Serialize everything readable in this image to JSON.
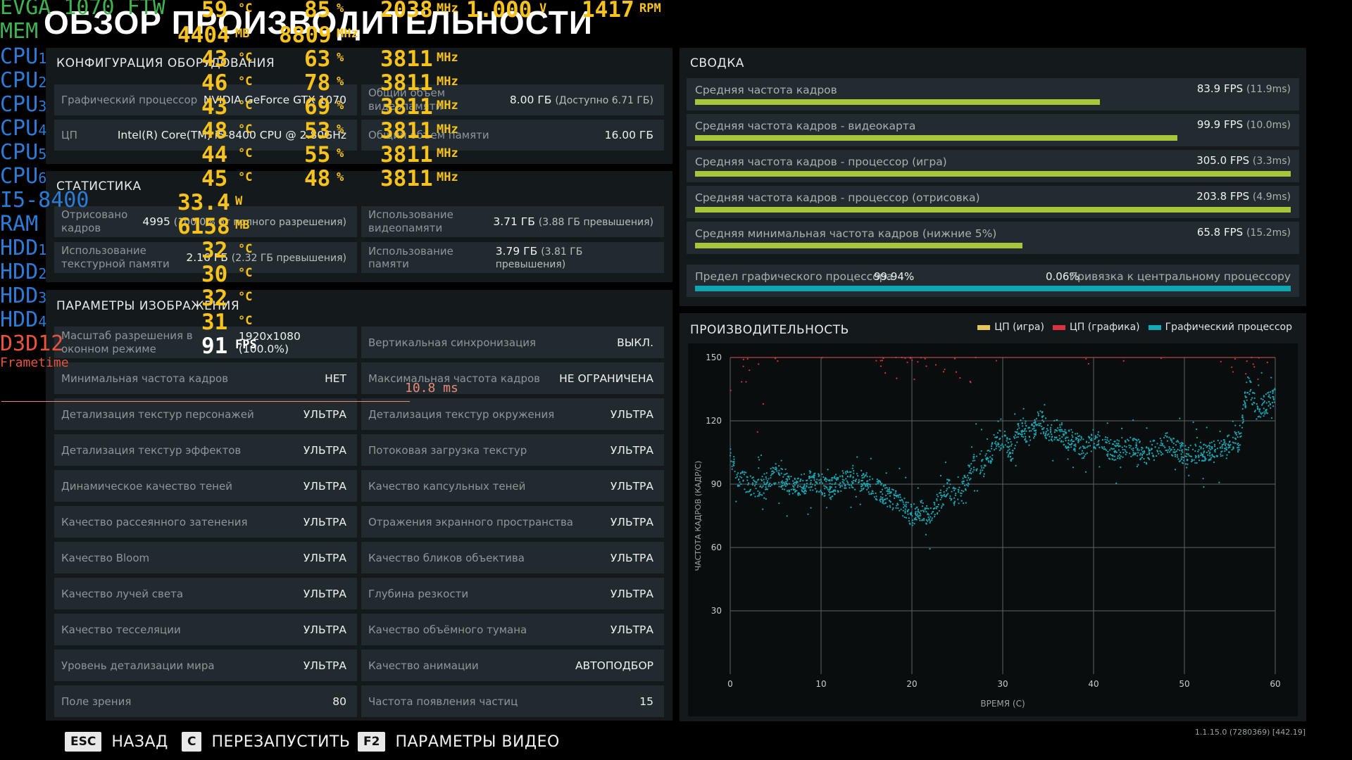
{
  "page_title": "ОБЗОР ПРОИЗВОДИТЕЛЬНОСТИ",
  "hardware": {
    "title": "КОНФИГУРАЦИЯ ОБОРУДОВАНИЯ",
    "gpu_label": "Графический процессор",
    "gpu_value": "NVIDIA GeForce GTX 1070",
    "cpu_label": "ЦП",
    "cpu_value": "Intel(R) Core(TM) i5-8400 CPU @ 2.80GHz",
    "vram_label": "Общий объем видеопамяти",
    "vram_value": "8.00 ГБ",
    "vram_extra": "(Доступно 6.71 ГБ)",
    "ram_label": "Общий объем памяти",
    "ram_value": "16.00 ГБ"
  },
  "stats": {
    "title": "СТАТИСТИКА",
    "frames_label": "Отрисовано кадров",
    "frames_value": "4995",
    "frames_extra": "(100.0% от полного разрешения)",
    "vram_use_label": "Использование видеопамяти",
    "vram_use_value": "3.71 ГБ",
    "vram_use_extra": "(3.88 ГБ превышения)",
    "tex_label": "Использование текстурной памяти",
    "tex_value": "2.16 ГБ",
    "tex_extra": "(2.32 ГБ превышения)",
    "mem_label": "Использование памяти",
    "mem_value": "3.79 ГБ",
    "mem_extra": "(3.81 ГБ превышения)"
  },
  "image": {
    "title": "ПАРАМЕТРЫ ИЗОБРАЖЕНИЯ",
    "left": [
      {
        "label": "Масштаб разрешения в оконном режиме",
        "value": "1920x1080 (100.0%)"
      },
      {
        "label": "Минимальная частота кадров",
        "value": "НЕТ"
      },
      {
        "label": "Детализация текстур персонажей",
        "value": "УЛЬТРА"
      },
      {
        "label": "Детализация текстур эффектов",
        "value": "УЛЬТРА"
      },
      {
        "label": "Динамическое качество теней",
        "value": "УЛЬТРА"
      },
      {
        "label": "Качество рассеянного затенения",
        "value": "УЛЬТРА"
      },
      {
        "label": "Качество Bloom",
        "value": "УЛЬТРА"
      },
      {
        "label": "Качество лучей света",
        "value": "УЛЬТРА"
      },
      {
        "label": "Качество тесселяции",
        "value": "УЛЬТРА"
      },
      {
        "label": "Уровень детализации мира",
        "value": "УЛЬТРА"
      },
      {
        "label": "Поле зрения",
        "value": "80"
      }
    ],
    "right": [
      {
        "label": "Вертикальная синхронизация",
        "value": "ВЫКЛ."
      },
      {
        "label": "Максимальная частота кадров",
        "value": "НЕ ОГРАНИЧЕНА"
      },
      {
        "label": "Детализация текстур окружения",
        "value": "УЛЬТРА"
      },
      {
        "label": "Потоковая загрузка текстур",
        "value": "УЛЬТРА"
      },
      {
        "label": "Качество капсульных теней",
        "value": "УЛЬТРА"
      },
      {
        "label": "Отражения экранного пространства",
        "value": "УЛЬТРА"
      },
      {
        "label": "Качество бликов объектива",
        "value": "УЛЬТРА"
      },
      {
        "label": "Глубина резкости",
        "value": "УЛЬТРА"
      },
      {
        "label": "Качество объёмного тумана",
        "value": "УЛЬТРА"
      },
      {
        "label": "Качество анимации",
        "value": "АВТОПОДБОР"
      },
      {
        "label": "Частота появления частиц",
        "value": "15"
      }
    ]
  },
  "summary": {
    "title": "СВОДКА",
    "rows": [
      {
        "label": "Средняя частота кадров",
        "value": "83.9 FPS",
        "extra": "(11.9ms)",
        "fraction": 0.68
      },
      {
        "label": "Средняя частота кадров - видеокарта",
        "value": "99.9 FPS",
        "extra": "(10.0ms)",
        "fraction": 0.81
      },
      {
        "label": "Средняя частота кадров - процессор (игра)",
        "value": "305.0 FPS",
        "extra": "(3.3ms)",
        "fraction": 1.0
      },
      {
        "label": "Средняя частота кадров - процессор (отрисовка)",
        "value": "203.8 FPS",
        "extra": "(4.9ms)",
        "fraction": 1.0
      },
      {
        "label": "Средняя минимальная частота кадров (нижние 5%)",
        "value": "65.8 FPS",
        "extra": "(15.2ms)",
        "fraction": 0.55
      }
    ],
    "limit": {
      "gpu_label": "Предел графического процессора",
      "gpu_value": "99.94%",
      "cpu_value": "0.06%",
      "cpu_label": "Привязка к центральному процессору",
      "fraction": 1.0
    }
  },
  "performance": {
    "title": "ПРОИЗВОДИТЕЛЬНОСТЬ",
    "legend": [
      {
        "label": "ЦП (игра)",
        "color": "#e8c55a"
      },
      {
        "label": "ЦП (графика)",
        "color": "#d9343e"
      },
      {
        "label": "Графический процессор",
        "color": "#16a9b6"
      }
    ]
  },
  "chart_data": {
    "type": "scatter",
    "xlabel": "ВРЕМЯ (С)",
    "ylabel": "ЧАСТОТА КАДРОВ (КАДР/С)",
    "xlim": [
      0,
      60
    ],
    "ylim": [
      0,
      150
    ],
    "xticks": [
      "0",
      "10",
      "20",
      "30",
      "40",
      "50",
      "60"
    ],
    "yticks": [
      "30",
      "60",
      "90",
      "120",
      "150"
    ],
    "grid": true,
    "legend_position": "top-right",
    "series": [
      {
        "name": "Графический процессор",
        "color": "#16a9b6",
        "trend_x": [
          0,
          1,
          3,
          5,
          7,
          9,
          11,
          13,
          15,
          17,
          19,
          20,
          21,
          22,
          23,
          24,
          25,
          26,
          27,
          28,
          29,
          30,
          31,
          32,
          33,
          34,
          35,
          36,
          37,
          38,
          39,
          40,
          42,
          44,
          46,
          48,
          50,
          52,
          54,
          55,
          56,
          57,
          58,
          59,
          60
        ],
        "trend_y": [
          104,
          92,
          88,
          95,
          88,
          92,
          88,
          93,
          91,
          85,
          80,
          75,
          78,
          74,
          82,
          88,
          82,
          92,
          102,
          98,
          108,
          112,
          105,
          118,
          112,
          122,
          115,
          116,
          112,
          110,
          106,
          112,
          106,
          108,
          104,
          110,
          104,
          105,
          106,
          110,
          110,
          138,
          125,
          128,
          132
        ]
      },
      {
        "name": "ЦП (графика)",
        "color": "#d9343e",
        "trend_x": [
          0,
          2,
          4,
          16,
          20,
          22,
          26,
          56,
          58,
          60
        ],
        "trend_y": [
          150,
          140,
          130,
          148,
          150,
          146,
          112,
          150,
          145,
          150
        ]
      },
      {
        "name": "ЦП (игра)",
        "color": "#e8c55a",
        "trend_x": [
          0,
          60
        ],
        "trend_y": [
          150,
          150
        ]
      }
    ]
  },
  "overlay": {
    "gpu_name": "EVGA 1070 FTW",
    "gpu_temp": "59",
    "gpu_load": "85",
    "gpu_clock": "2038",
    "gpu_volt": "1.000",
    "gpu_fan": "1417",
    "mem_label": "MEM",
    "mem_used": "4404",
    "mem_clock": "8809",
    "unit_c": "°C",
    "unit_pct": "%",
    "unit_mhz": "MHz",
    "unit_mb": "MB",
    "unit_v": "V",
    "unit_rpm": "RPM",
    "unit_w": "W",
    "unit_fps": "FPS",
    "cpus": [
      {
        "label": "CPU",
        "idx": "1",
        "temp": "43",
        "load": "63",
        "clock": "3811"
      },
      {
        "label": "CPU",
        "idx": "2",
        "temp": "46",
        "load": "78",
        "clock": "3811"
      },
      {
        "label": "CPU",
        "idx": "3",
        "temp": "43",
        "load": "69",
        "clock": "3811"
      },
      {
        "label": "CPU",
        "idx": "4",
        "temp": "48",
        "load": "53",
        "clock": "3811"
      },
      {
        "label": "CPU",
        "idx": "5",
        "temp": "44",
        "load": "55",
        "clock": "3811"
      },
      {
        "label": "CPU",
        "idx": "6",
        "temp": "45",
        "load": "48",
        "clock": "3811"
      }
    ],
    "cpu_name": "I5-8400",
    "cpu_power": "33.4",
    "ram_label": "RAM",
    "ram_used": "6158",
    "hdds": [
      {
        "label": "HDD",
        "idx": "1",
        "temp": "32"
      },
      {
        "label": "HDD",
        "idx": "2",
        "temp": "30"
      },
      {
        "label": "HDD",
        "idx": "3",
        "temp": "32"
      },
      {
        "label": "HDD",
        "idx": "4",
        "temp": "31"
      }
    ],
    "api_label": "D3D12",
    "fps": "91",
    "frametime_label": "Frametime",
    "frametime_value": "10.8 ms"
  },
  "bottom": {
    "back_key": "ESC",
    "back_label": "НАЗАД",
    "restart_key": "C",
    "restart_label": "ПЕРЕЗАПУСТИТЬ",
    "video_key": "F2",
    "video_label": "ПАРАМЕТРЫ ВИДЕО"
  },
  "version": "1.1.15.0 (7280369) [442.19]"
}
